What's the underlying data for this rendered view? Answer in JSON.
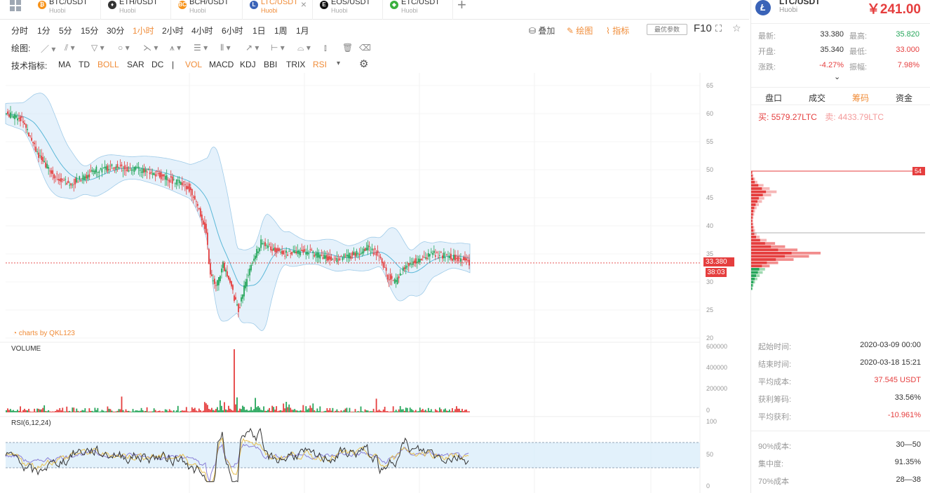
{
  "tabs": [
    {
      "pair": "BTC/USDT",
      "exchange": "Huobi",
      "icon": "bitcoin-icon",
      "color": "#f7931a",
      "glyph": "₿",
      "active": false
    },
    {
      "pair": "ETH/USDT",
      "exchange": "Huobi",
      "icon": "ethereum-icon",
      "color": "#333333",
      "glyph": "♦",
      "active": false
    },
    {
      "pair": "BCH/USDT",
      "exchange": "Huobi",
      "icon": "bitcoin-cash-icon",
      "color": "#f7931a",
      "glyph": "BC",
      "active": false
    },
    {
      "pair": "LTC/USDT",
      "exchange": "Huobi",
      "icon": "litecoin-icon",
      "color": "#3a63b8",
      "glyph": "L",
      "active": true
    },
    {
      "pair": "EOS/USDT",
      "exchange": "Huobi",
      "icon": "eos-icon",
      "color": "#111111",
      "glyph": "E",
      "active": false
    },
    {
      "pair": "ETC/USDT",
      "exchange": "Huobi",
      "icon": "etc-icon",
      "color": "#3ab03e",
      "glyph": "◆",
      "active": false
    }
  ],
  "periods": [
    "分时",
    "1分",
    "5分",
    "15分",
    "30分",
    "1小时",
    "2小时",
    "4小时",
    "6小时",
    "1日",
    "1周",
    "1月"
  ],
  "active_period": "1小时",
  "right_tools": {
    "overlay": "叠加",
    "draw": "绘图",
    "indicator": "指标",
    "best_param": "最优参数",
    "f10": "F10"
  },
  "draw_label": "绘图:",
  "indicator_label": "技术指标:",
  "indicators": [
    {
      "name": "MA",
      "active": false
    },
    {
      "name": "TD",
      "active": false
    },
    {
      "name": "BOLL",
      "active": true
    },
    {
      "name": "SAR",
      "active": false
    },
    {
      "name": "DC",
      "active": false
    },
    {
      "name": "|",
      "active": false
    },
    {
      "name": "VOL",
      "active": true
    },
    {
      "name": "MACD",
      "active": false
    },
    {
      "name": "KDJ",
      "active": false
    },
    {
      "name": "BBI",
      "active": false
    },
    {
      "name": "TRIX",
      "active": false
    },
    {
      "name": "RSI",
      "active": true
    }
  ],
  "chart": {
    "price_ticks": [
      "65",
      "60",
      "55",
      "50",
      "45",
      "40",
      "35",
      "30",
      "25",
      "20"
    ],
    "volume_ticks": [
      "600000",
      "400000",
      "200000",
      "0"
    ],
    "rsi_ticks": [
      "100",
      "50",
      "0"
    ],
    "watermark": "charts by QKL123",
    "volume_label": "VOLUME",
    "rsi_label": "RSI(6,12,24)",
    "last_price": "33.380",
    "countdown": "38:03",
    "up_color": "#26a65b",
    "down_color": "#e53e3e",
    "boll_color": "#cfe6f7"
  },
  "panel": {
    "pair": "LTC/USDT",
    "exchange": "Huobi",
    "price": "￥241.00",
    "stats": [
      {
        "l1": "最新:",
        "v1": "33.380",
        "l2": "最高:",
        "v2": "35.820",
        "c2": "#26a65b"
      },
      {
        "l1": "开盘:",
        "v1": "35.340",
        "l2": "最低:",
        "v2": "33.000",
        "c2": "#e53e3e"
      },
      {
        "l1": "涨跌:",
        "v1": "-4.27%",
        "l2": "振幅:",
        "v2": "7.98%",
        "c2": "#e53e3e"
      }
    ],
    "tabs": [
      "盘口",
      "成交",
      "筹码",
      "资金"
    ],
    "active_tab": "筹码",
    "buy_label": "买:",
    "buy_value": "5579.27LTC",
    "sell_label": "卖:",
    "sell_value": "4433.79LTC",
    "dist_marker": "54",
    "info": [
      {
        "label": "起始时间:",
        "value": "2020-03-09 00:00",
        "color": "#333333"
      },
      {
        "label": "结束时间:",
        "value": "2020-03-18 15:21",
        "color": "#333333"
      },
      {
        "label": "平均成本:",
        "value": "37.545 USDT",
        "color": "#e53e3e"
      },
      {
        "label": "获利筹码:",
        "value": "33.56%",
        "color": "#333333"
      },
      {
        "label": "平均获利:",
        "value": "-10.961%",
        "color": "#e53e3e"
      }
    ],
    "info2": [
      {
        "label": "90%成本:",
        "value": "30—50"
      },
      {
        "label": "集中度:",
        "value": "91.35%"
      },
      {
        "label": "70%成本",
        "value": "28—38"
      }
    ]
  }
}
